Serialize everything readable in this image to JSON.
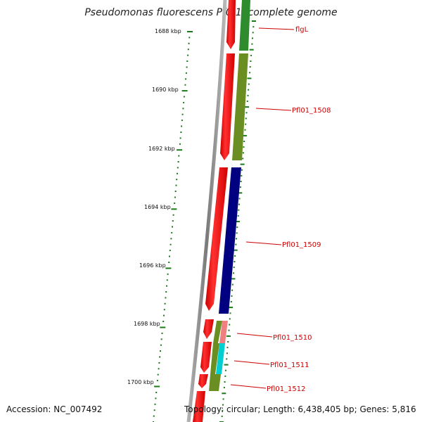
{
  "header": {
    "title": "Pseudomonas fluorescens Pf0-1, complete genome"
  },
  "footer": {
    "accession": "Accession: NC_007492",
    "stats": "Topology: circular; Length: 6,438,405 bp; Genes: 5,816"
  },
  "scale": {
    "ticks": [
      {
        "label": "1688 kbp",
        "kbp": 1688
      },
      {
        "label": "1690 kbp",
        "kbp": 1690
      },
      {
        "label": "1692 kbp",
        "kbp": 1692
      },
      {
        "label": "1694 kbp",
        "kbp": 1694
      },
      {
        "label": "1696 kbp",
        "kbp": 1696
      },
      {
        "label": "1698 kbp",
        "kbp": 1698
      },
      {
        "label": "1700 kbp",
        "kbp": 1700
      }
    ]
  },
  "genes": [
    {
      "name": "flgL",
      "colors": {
        "forward": "#ff0000",
        "reverse": "#2e8b2e"
      }
    },
    {
      "name": "Pfl01_1508",
      "colors": {
        "forward": "#ff0000",
        "reverse": "#6b8e23"
      }
    },
    {
      "name": "Pfl01_1509",
      "colors": {
        "forward": "#ff0000",
        "reverse": "#000080"
      }
    },
    {
      "name": "Pfl01_1510",
      "colors": {
        "forward": "#ff0000",
        "reverse": "#f08080"
      }
    },
    {
      "name": "Pfl01_1511",
      "colors": {
        "forward": "#ff0000",
        "reverse": "#00ced1"
      }
    },
    {
      "name": "Pfl01_1512",
      "colors": {
        "forward": "#ff0000",
        "reverse": "#6b8e23"
      }
    }
  ],
  "colors": {
    "backbone": "#808080",
    "ticks": "#1a7a1a",
    "label_text": "#cc0000"
  }
}
